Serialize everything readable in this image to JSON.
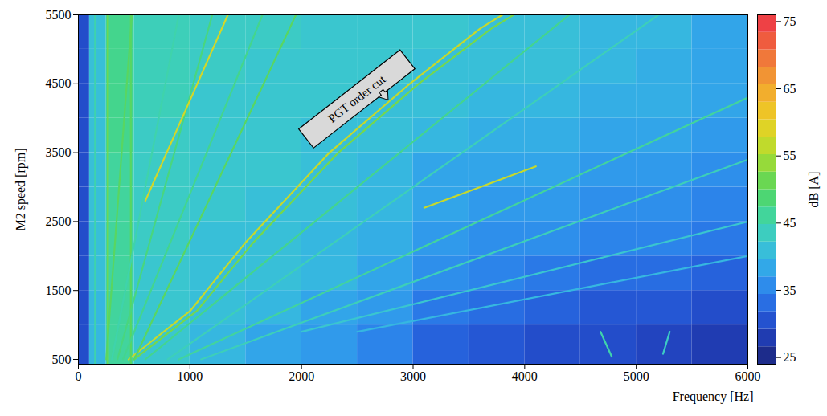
{
  "chart_data": {
    "type": "heatmap",
    "xlabel": "Frequency [Hz]",
    "ylabel": "M2 speed [rpm]",
    "xlim": [
      0,
      6000
    ],
    "xticks": [
      0,
      1000,
      2000,
      3000,
      4000,
      5000,
      6000
    ],
    "ylim": [
      430,
      5500
    ],
    "yticks": [
      500,
      1500,
      2500,
      3500,
      4500,
      5500
    ],
    "cells": {
      "x_edges": [
        0,
        100,
        250,
        500,
        1000,
        1500,
        2000,
        2500,
        3000,
        3500,
        4000,
        4500,
        5000,
        5500,
        6000
      ],
      "y_edges": [
        430,
        1000,
        1500,
        2000,
        2500,
        3000,
        3500,
        4000,
        4500,
        5000,
        5500
      ],
      "values": [
        [
          30,
          40,
          46,
          42,
          40,
          38,
          37,
          35,
          32,
          31,
          30,
          30,
          29,
          28
        ],
        [
          30,
          40,
          46,
          42,
          41,
          40,
          38,
          37,
          34,
          33,
          32,
          31,
          31,
          30
        ],
        [
          30,
          41,
          46,
          42,
          41,
          41,
          40,
          38,
          36,
          35,
          34,
          33,
          33,
          32
        ],
        [
          30,
          41,
          46,
          43,
          41,
          41,
          40,
          39,
          37,
          36,
          36,
          35,
          35,
          34
        ],
        [
          30,
          41,
          46,
          43,
          42,
          41,
          41,
          40,
          38,
          37,
          37,
          36,
          36,
          35
        ],
        [
          30,
          41,
          46,
          43,
          42,
          42,
          41,
          40,
          38,
          38,
          38,
          37,
          37,
          36
        ],
        [
          30,
          41,
          47,
          43,
          42,
          42,
          41,
          41,
          40,
          39,
          39,
          38,
          38,
          37
        ],
        [
          30,
          41,
          47,
          44,
          42,
          42,
          42,
          41,
          41,
          40,
          40,
          39,
          39,
          38
        ],
        [
          30,
          41,
          47,
          44,
          43,
          42,
          42,
          42,
          41,
          41,
          41,
          40,
          39,
          38
        ],
        [
          30,
          41,
          47,
          44,
          43,
          43,
          42,
          42,
          42,
          41,
          41,
          40,
          40,
          38
        ]
      ]
    },
    "lines": [
      {
        "x": [
          450,
          1000,
          1500,
          2250,
          2970,
          3600,
          3800
        ],
        "y": [
          500,
          1200,
          2200,
          3500,
          4500,
          5300,
          5500
        ],
        "level": 57
      },
      {
        "x": [
          500,
          1060,
          1570,
          2330,
          3050,
          3700,
          3900
        ],
        "y": [
          500,
          1200,
          2200,
          3500,
          4500,
          5300,
          5500
        ],
        "level": 52
      },
      {
        "x": [
          265,
          265
        ],
        "y": [
          430,
          5500
        ],
        "level": 52
      },
      {
        "x": [
          470,
          470
        ],
        "y": [
          430,
          5500
        ],
        "level": 50
      },
      {
        "x": [
          150,
          150
        ],
        "y": [
          430,
          5500
        ],
        "level": 45
      },
      {
        "x": [
          250,
          480
        ],
        "y": [
          500,
          5500
        ],
        "level": 50
      },
      {
        "x": [
          300,
          900
        ],
        "y": [
          500,
          5500
        ],
        "level": 45
      },
      {
        "x": [
          350,
          1200
        ],
        "y": [
          500,
          5500
        ],
        "level": 48
      },
      {
        "x": [
          600,
          1340
        ],
        "y": [
          2800,
          5500
        ],
        "level": 58
      },
      {
        "x": [
          400,
          1650
        ],
        "y": [
          500,
          5500
        ],
        "level": 47
      },
      {
        "x": [
          500,
          1950
        ],
        "y": [
          500,
          5500
        ],
        "level": 50
      },
      {
        "x": [
          600,
          4400
        ],
        "y": [
          500,
          5500
        ],
        "level": 47
      },
      {
        "x": [
          800,
          5200
        ],
        "y": [
          500,
          5500
        ],
        "level": 44
      },
      {
        "x": [
          900,
          6000
        ],
        "y": [
          500,
          4300
        ],
        "level": 46
      },
      {
        "x": [
          3100,
          4100
        ],
        "y": [
          2700,
          3300
        ],
        "level": 57
      },
      {
        "x": [
          1100,
          6000
        ],
        "y": [
          500,
          3400
        ],
        "level": 44
      },
      {
        "x": [
          2000,
          6000
        ],
        "y": [
          900,
          2500
        ],
        "level": 42
      },
      {
        "x": [
          2500,
          6000
        ],
        "y": [
          900,
          2000
        ],
        "level": 40
      },
      {
        "x": [
          4680,
          4780
        ],
        "y": [
          900,
          540
        ],
        "level": 45
      },
      {
        "x": [
          5300,
          5240
        ],
        "y": [
          900,
          580
        ],
        "level": 43
      }
    ],
    "colorbar": {
      "label": "dB [A]",
      "range": [
        24,
        76
      ],
      "ticks": [
        25,
        35,
        45,
        55,
        65,
        75
      ]
    },
    "annotations": [
      {
        "text": "PGT order cut",
        "x": 2780,
        "y": 4260
      }
    ],
    "grid": false
  }
}
